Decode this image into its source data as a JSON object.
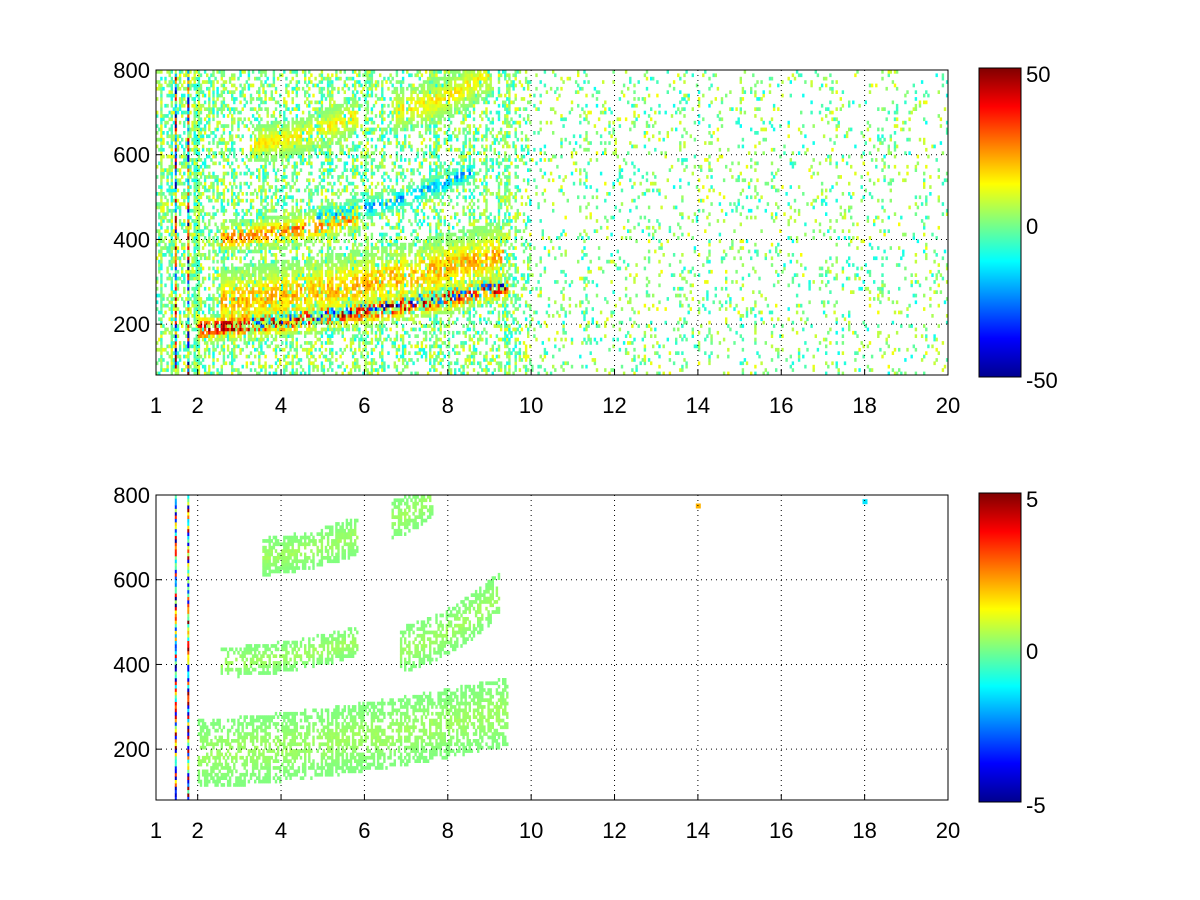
{
  "chart_data": [
    {
      "type": "heatmap",
      "title": "",
      "xlabel": "",
      "ylabel": "",
      "xlim": [
        1,
        20
      ],
      "ylim": [
        80,
        800
      ],
      "grid": true,
      "x_ticks": [
        "1",
        "2",
        "4",
        "6",
        "8",
        "10",
        "12",
        "14",
        "16",
        "18",
        "20"
      ],
      "y_ticks": [
        "200",
        "400",
        "600",
        "800"
      ],
      "colorbar": {
        "min": -50,
        "max": 50,
        "ticks": [
          "50",
          "0",
          "-50"
        ],
        "colormap": "jet"
      },
      "vertical_lines_x": [
        1.45,
        1.75
      ],
      "features": [
        {
          "name": "",
          "x0": 2.0,
          "x1": 9.4,
          "y0": 185,
          "y1": 285,
          "curve": 0.45,
          "width": 20,
          "sign": 1,
          "amplitude": 45,
          "noise": 0.85
        },
        {
          "name": "",
          "x0": 3.2,
          "x1": 9.4,
          "y0": 200,
          "y1": 290,
          "curve": 0.6,
          "width": 14,
          "sign": -1,
          "amplitude": 48,
          "noise": 0.7
        },
        {
          "name": "",
          "x0": 2.5,
          "x1": 9.3,
          "y0": 250,
          "y1": 360,
          "curve": 0.5,
          "width": 45,
          "sign": 1,
          "amplitude": 22,
          "noise": 1.0
        },
        {
          "name": "",
          "x0": 2.5,
          "x1": 5.8,
          "y0": 400,
          "y1": 450,
          "curve": 0.3,
          "width": 22,
          "sign": 1,
          "amplitude": 28,
          "noise": 0.9
        },
        {
          "name": "",
          "x0": 4.8,
          "x1": 8.6,
          "y0": 450,
          "y1": 560,
          "curve": 0.4,
          "width": 15,
          "sign": -1,
          "amplitude": 25,
          "noise": 0.9
        },
        {
          "name": "",
          "x0": 3.2,
          "x1": 5.8,
          "y0": 620,
          "y1": 690,
          "curve": 0.3,
          "width": 25,
          "sign": 1,
          "amplitude": 15,
          "noise": 1.0
        },
        {
          "name": "",
          "x0": 6.6,
          "x1": 9.0,
          "y0": 700,
          "y1": 790,
          "curve": 0.3,
          "width": 30,
          "sign": 1,
          "amplitude": 15,
          "noise": 1.0
        }
      ],
      "background_noise": {
        "amplitude": 12,
        "density_low_x": 0.55,
        "density_high_x": 0.12
      }
    },
    {
      "type": "heatmap",
      "title": "",
      "xlabel": "",
      "ylabel": "",
      "xlim": [
        1,
        20
      ],
      "ylim": [
        80,
        800
      ],
      "grid": true,
      "x_ticks": [
        "1",
        "2",
        "4",
        "6",
        "8",
        "10",
        "12",
        "14",
        "16",
        "18",
        "20"
      ],
      "y_ticks": [
        "200",
        "400",
        "600",
        "800"
      ],
      "colorbar": {
        "min": -5,
        "max": 5,
        "ticks": [
          "5",
          "0",
          "-5"
        ],
        "colormap": "jet"
      },
      "vertical_lines_x": [
        1.45,
        1.75
      ],
      "features": [
        {
          "name": "",
          "x0": 2.0,
          "x1": 9.4,
          "y0": 185,
          "y1": 285,
          "curve": 0.45,
          "width": 45,
          "sign": 1,
          "amplitude": 0.35,
          "noise": 0.8
        },
        {
          "name": "",
          "x0": 2.5,
          "x1": 5.8,
          "y0": 400,
          "y1": 450,
          "curve": 0.3,
          "width": 20,
          "sign": 1,
          "amplitude": 0.35,
          "noise": 0.8
        },
        {
          "name": "",
          "x0": 6.8,
          "x1": 9.2,
          "y0": 430,
          "y1": 560,
          "curve": 0.4,
          "width": 30,
          "sign": 1,
          "amplitude": 0.35,
          "noise": 0.8
        },
        {
          "name": "",
          "x0": 3.5,
          "x1": 5.8,
          "y0": 650,
          "y1": 700,
          "curve": 0.3,
          "width": 25,
          "sign": 1,
          "amplitude": 0.35,
          "noise": 0.9
        },
        {
          "name": "",
          "x0": 6.6,
          "x1": 7.6,
          "y0": 740,
          "y1": 790,
          "curve": 0.2,
          "width": 25,
          "sign": 1,
          "amplitude": 0.35,
          "noise": 0.9
        }
      ],
      "isolated_points": [
        {
          "x": 13.95,
          "y": 772,
          "value": 2.0
        },
        {
          "x": 17.95,
          "y": 782,
          "value": -1.5
        }
      ],
      "background_noise": {
        "amplitude": 0,
        "density_low_x": 0,
        "density_high_x": 0
      }
    }
  ]
}
